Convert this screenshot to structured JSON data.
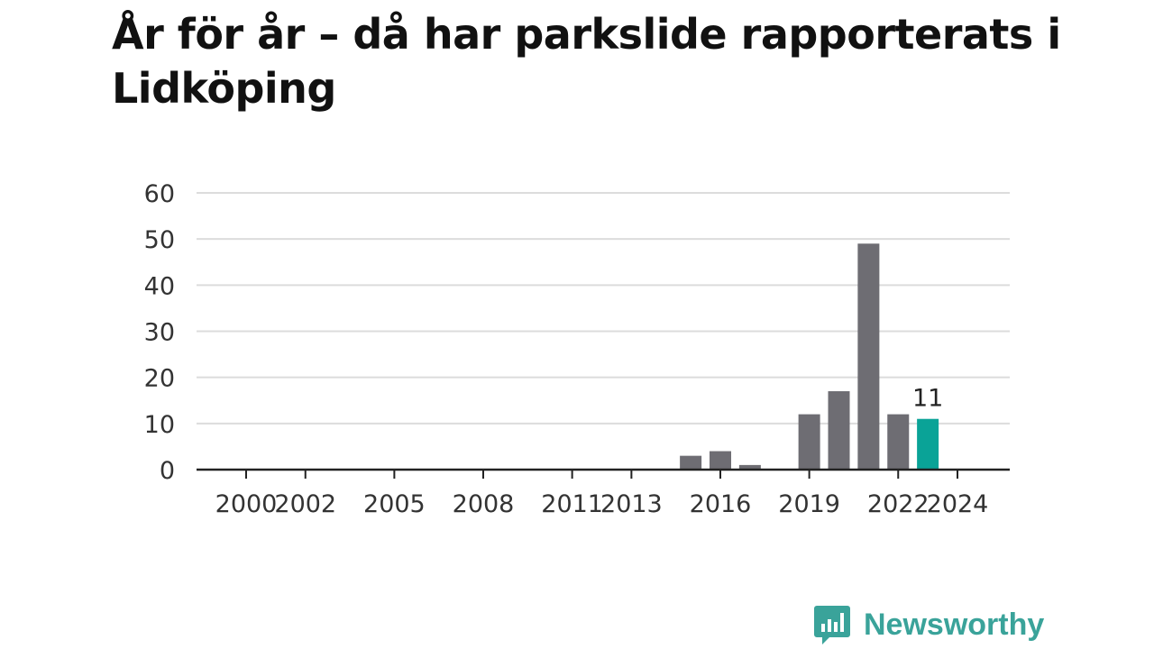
{
  "brand": {
    "name": "Newsworthy",
    "color": "#3aa39a",
    "icon": "newsworthy-chat-bars-icon"
  },
  "chart_data": {
    "type": "bar",
    "title": "År för år – då har parkslide rapporterats i Lidköping",
    "xlabel": "",
    "ylabel": "",
    "ylim": [
      0,
      60
    ],
    "y_ticks": [
      0,
      10,
      20,
      30,
      40,
      50,
      60
    ],
    "categories": [
      "2000",
      "2001",
      "2002",
      "2003",
      "2004",
      "2005",
      "2006",
      "2007",
      "2008",
      "2009",
      "2010",
      "2011",
      "2012",
      "2013",
      "2014",
      "2015",
      "2016",
      "2017",
      "2018",
      "2019",
      "2020",
      "2021",
      "2022",
      "2023",
      "2024"
    ],
    "x_tick_labels": [
      "2000",
      "2002",
      "2005",
      "2008",
      "2011",
      "2013",
      "2016",
      "2019",
      "2022",
      "2024"
    ],
    "values": [
      0,
      0,
      0,
      0,
      0,
      0,
      0,
      0,
      0,
      0,
      0,
      0,
      0,
      0,
      0,
      3,
      4,
      1,
      0,
      12,
      17,
      49,
      12,
      11,
      0
    ],
    "bar_color": "#6e6d73",
    "highlight": {
      "category": "2023",
      "color": "#0aa397",
      "label": "11"
    },
    "grid": true,
    "legend": "none"
  }
}
